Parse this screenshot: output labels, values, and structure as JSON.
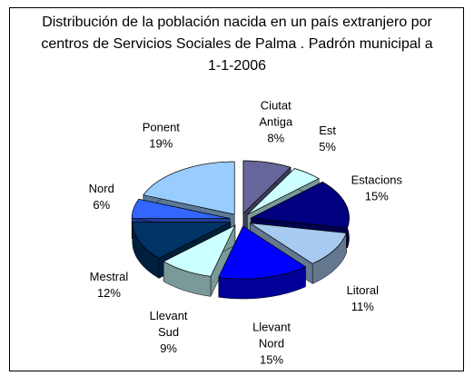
{
  "chart_data": {
    "type": "pie3d",
    "title": "Distribución de la población nacida en un país extranjero por centros de Servicios Sociales de Palma . Padrón municipal a 1-1-2006",
    "categories": [
      "Ciutat Antiga",
      "Est",
      "Estacions",
      "Litoral",
      "Llevant Nord",
      "Llevant Sud",
      "Mestral",
      "Nord",
      "Ponent"
    ],
    "values": [
      8,
      5,
      15,
      11,
      15,
      9,
      12,
      6,
      19
    ],
    "value_labels": [
      "8%",
      "5%",
      "15%",
      "11%",
      "15%",
      "9%",
      "12%",
      "6%",
      "19%"
    ],
    "colors": [
      "#66669a",
      "#ccffff",
      "#000080",
      "#a6caf0",
      "#0000ff",
      "#ccffff",
      "#003366",
      "#3366ff",
      "#99ccff"
    ]
  }
}
